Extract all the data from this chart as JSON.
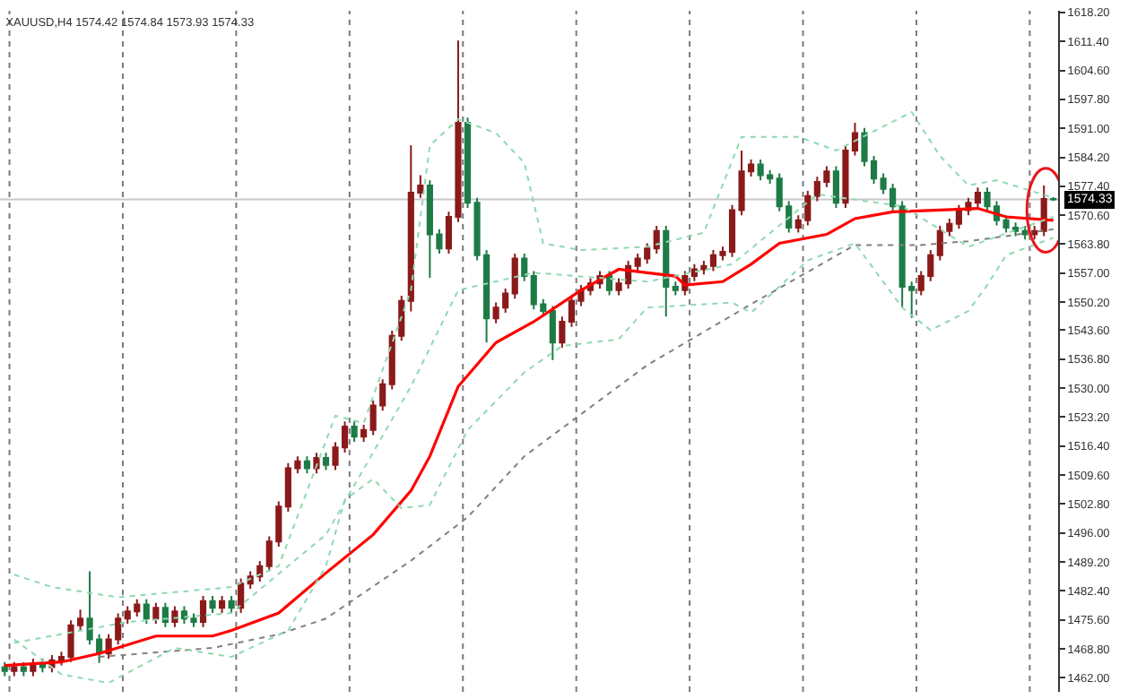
{
  "chart_data": {
    "type": "candlestick",
    "title": "XAUUSD,H4 1574.42 1574.84 1573.93 1574.33",
    "categories": [
      null,
      null,
      null,
      null,
      null,
      null,
      null,
      null,
      null,
      null,
      null,
      null,
      null,
      null,
      null,
      null,
      null,
      null,
      null,
      null,
      null,
      null,
      null,
      null,
      null,
      null,
      null,
      null,
      null,
      null,
      null,
      null,
      null,
      null,
      null,
      null,
      null,
      null,
      null,
      null,
      null,
      null,
      null,
      null,
      null,
      null,
      null,
      null,
      null,
      null,
      null,
      null,
      null,
      null,
      null,
      null,
      null,
      null,
      null,
      null,
      null,
      null,
      null,
      null,
      null,
      null,
      null,
      null,
      null,
      null,
      null,
      null,
      null,
      null,
      null,
      null,
      null,
      null,
      null,
      null,
      null,
      null,
      null,
      null,
      null,
      null,
      null,
      null,
      null,
      null,
      null,
      null,
      null,
      null,
      null,
      null,
      null,
      null,
      null,
      null,
      null,
      null,
      null,
      null,
      null,
      null,
      null,
      null,
      null,
      null,
      null,
      null
    ],
    "ylim": [
      1458.7,
      1618.6
    ],
    "yticks": [
      {
        "value": 1462.0,
        "label": "1462.00"
      },
      {
        "value": 1468.8,
        "label": "1468.80"
      },
      {
        "value": 1475.6,
        "label": "1475.60"
      },
      {
        "value": 1482.4,
        "label": "1482.40"
      },
      {
        "value": 1489.2,
        "label": "1489.20"
      },
      {
        "value": 1496.0,
        "label": "1496.00"
      },
      {
        "value": 1502.8,
        "label": "1502.80"
      },
      {
        "value": 1509.6,
        "label": "1509.60"
      },
      {
        "value": 1516.4,
        "label": "1516.40"
      },
      {
        "value": 1523.2,
        "label": "1523.20"
      },
      {
        "value": 1530.0,
        "label": "1530.00"
      },
      {
        "value": 1536.8,
        "label": "1536.80"
      },
      {
        "value": 1543.6,
        "label": "1543.60"
      },
      {
        "value": 1550.2,
        "label": "1550.20"
      },
      {
        "value": 1557.0,
        "label": "1557.00"
      },
      {
        "value": 1563.8,
        "label": "1563.80"
      },
      {
        "value": 1570.6,
        "label": "1570.60"
      },
      {
        "value": 1577.4,
        "label": "1577.40"
      },
      {
        "value": 1584.2,
        "label": "1584.20"
      },
      {
        "value": 1591.0,
        "label": "1591.00"
      },
      {
        "value": 1597.8,
        "label": "1597.80"
      },
      {
        "value": 1604.6,
        "label": "1604.60"
      },
      {
        "value": 1611.4,
        "label": "1611.40"
      },
      {
        "value": 1618.2,
        "label": "1618.20"
      }
    ],
    "tick_labels": "y",
    "grid": "x",
    "ref_lines": [
      {
        "axis": "y",
        "value": 1574.33,
        "label": "1574.33",
        "color": "#c8c8c8"
      }
    ],
    "colors": [
      "#1e7b46",
      "#8b1a1a",
      "#1e7b46",
      "#8b1a1a",
      "#1e7b46",
      "#8b1a1a",
      "#8b1a1a",
      "#8b1a1a",
      "#8b1a1a",
      "#1e7b46",
      "#1e7b46",
      "#8b1a1a",
      "#8b1a1a",
      "#8b1a1a",
      "#8b1a1a",
      "#1e7b46",
      "#8b1a1a",
      "#1e7b46",
      "#8b1a1a",
      "#1e7b46",
      "#1e7b46",
      "#8b1a1a",
      "#1e7b46",
      "#8b1a1a",
      "#1e7b46",
      "#8b1a1a",
      "#8b1a1a",
      "#8b1a1a",
      "#8b1a1a",
      "#8b1a1a",
      "#8b1a1a",
      "#8b1a1a",
      "#1e7b46",
      "#8b1a1a",
      "#1e7b46",
      "#8b1a1a",
      "#8b1a1a",
      "#1e7b46",
      "#8b1a1a",
      "#8b1a1a",
      "#8b1a1a",
      "#8b1a1a",
      "#8b1a1a",
      "#8b1a1a",
      "#8b1a1a",
      "#1e7b46",
      "#1e7b46",
      "#8b1a1a",
      "#8b1a1a",
      "#1e7b46",
      "#1e7b46",
      "#1e7b46",
      "#8b1a1a",
      "#8b1a1a",
      "#8b1a1a",
      "#1e7b46",
      "#1e7b46",
      "#1e7b46",
      "#1e7b46",
      "#8b1a1a",
      "#8b1a1a",
      "#8b1a1a",
      "#8b1a1a",
      "#8b1a1a",
      "#1e7b46",
      "#8b1a1a",
      "#8b1a1a",
      "#8b1a1a",
      "#8b1a1a",
      "#8b1a1a",
      "#1e7b46",
      "#1e7b46",
      "#8b1a1a",
      "#8b1a1a",
      "#8b1a1a",
      "#8b1a1a",
      "#8b1a1a",
      "#8b1a1a",
      "#8b1a1a",
      "#8b1a1a",
      "#1e7b46",
      "#1e7b46",
      "#1e7b46",
      "#1e7b46",
      "#8b1a1a",
      "#8b1a1a",
      "#8b1a1a",
      "#8b1a1a",
      "#1e7b46",
      "#8b1a1a",
      "#8b1a1a",
      "#1e7b46",
      "#1e7b46",
      "#1e7b46",
      "#1e7b46",
      "#1e7b46",
      "#1e7b46",
      "#8b1a1a",
      "#8b1a1a",
      "#8b1a1a",
      "#8b1a1a",
      "#8b1a1a",
      "#8b1a1a",
      "#8b1a1a",
      "#1e7b46",
      "#1e7b46",
      "#1e7b46",
      "#1e7b46",
      "#1e7b46",
      "#8b1a1a",
      "#8b1a1a",
      "#1e7b46"
    ],
    "ohlc": [
      [
        1464.5,
        1465.7,
        1462.4,
        1463.6
      ],
      [
        1463.6,
        1465.7,
        1462.4,
        1464.5
      ],
      [
        1464.5,
        1465.7,
        1462.4,
        1463.6
      ],
      [
        1463.6,
        1466.5,
        1462.4,
        1465.3
      ],
      [
        1465.3,
        1466.5,
        1463.3,
        1464.5
      ],
      [
        1464.5,
        1467.3,
        1463.3,
        1466.1
      ],
      [
        1466.1,
        1468.1,
        1464.9,
        1466.9
      ],
      [
        1466.9,
        1475.5,
        1465.7,
        1474.3
      ],
      [
        1474.3,
        1478.0,
        1473.1,
        1475.9
      ],
      [
        1475.9,
        1487.0,
        1469.8,
        1471.0
      ],
      [
        1471.0,
        1472.2,
        1465.5,
        1467.7
      ],
      [
        1467.7,
        1472.2,
        1466.5,
        1471.0
      ],
      [
        1471.0,
        1477.1,
        1469.8,
        1475.9
      ],
      [
        1475.9,
        1478.8,
        1474.7,
        1477.6
      ],
      [
        1477.6,
        1480.4,
        1476.4,
        1479.2
      ],
      [
        1479.2,
        1480.4,
        1474.7,
        1475.9
      ],
      [
        1475.9,
        1479.6,
        1474.7,
        1478.4
      ],
      [
        1478.4,
        1479.6,
        1473.9,
        1475.1
      ],
      [
        1475.1,
        1478.8,
        1473.9,
        1477.6
      ],
      [
        1477.6,
        1478.8,
        1474.7,
        1475.9
      ],
      [
        1475.9,
        1477.1,
        1473.9,
        1475.1
      ],
      [
        1475.1,
        1481.2,
        1473.9,
        1480.0
      ],
      [
        1480.0,
        1481.2,
        1477.2,
        1478.4
      ],
      [
        1478.4,
        1481.2,
        1477.2,
        1480.0
      ],
      [
        1480.0,
        1481.2,
        1477.2,
        1478.4
      ],
      [
        1478.4,
        1485.3,
        1477.2,
        1484.1
      ],
      [
        1484.1,
        1487.0,
        1482.9,
        1485.8
      ],
      [
        1485.8,
        1489.4,
        1484.6,
        1488.2
      ],
      [
        1488.2,
        1495.2,
        1487.0,
        1494.0
      ],
      [
        1494.0,
        1503.4,
        1492.8,
        1502.2
      ],
      [
        1502.2,
        1512.4,
        1501.0,
        1511.2
      ],
      [
        1511.2,
        1514.0,
        1510.0,
        1512.8
      ],
      [
        1512.8,
        1514.0,
        1510.0,
        1511.2
      ],
      [
        1511.2,
        1514.8,
        1510.0,
        1513.6
      ],
      [
        1513.6,
        1514.8,
        1510.8,
        1512.0
      ],
      [
        1512.0,
        1517.3,
        1510.8,
        1516.1
      ],
      [
        1516.1,
        1522.2,
        1514.9,
        1521.0
      ],
      [
        1521.0,
        1522.2,
        1517.4,
        1518.6
      ],
      [
        1518.6,
        1521.4,
        1517.4,
        1520.2
      ],
      [
        1520.2,
        1527.1,
        1519.0,
        1525.9
      ],
      [
        1525.9,
        1532.1,
        1524.7,
        1530.9
      ],
      [
        1530.9,
        1543.5,
        1529.7,
        1542.3
      ],
      [
        1542.3,
        1551.7,
        1541.1,
        1550.5
      ],
      [
        1550.5,
        1587.0,
        1548.0,
        1575.9
      ],
      [
        1575.9,
        1580.0,
        1574.7,
        1577.6
      ],
      [
        1577.6,
        1578.8,
        1555.9,
        1566.1
      ],
      [
        1566.1,
        1567.3,
        1561.6,
        1562.8
      ],
      [
        1562.8,
        1571.4,
        1561.6,
        1570.2
      ],
      [
        1570.2,
        1611.6,
        1569.0,
        1592.3
      ],
      [
        1592.3,
        1593.5,
        1572.3,
        1573.5
      ],
      [
        1573.5,
        1574.7,
        1560.0,
        1561.2
      ],
      [
        1561.2,
        1562.4,
        1540.7,
        1546.4
      ],
      [
        1546.4,
        1550.1,
        1545.2,
        1548.9
      ],
      [
        1548.9,
        1553.4,
        1547.7,
        1552.2
      ],
      [
        1552.2,
        1561.6,
        1551.0,
        1560.4
      ],
      [
        1560.4,
        1561.6,
        1555.1,
        1556.3
      ],
      [
        1556.3,
        1557.5,
        1548.5,
        1549.7
      ],
      [
        1549.7,
        1550.9,
        1546.9,
        1548.1
      ],
      [
        1548.1,
        1549.3,
        1536.6,
        1540.7
      ],
      [
        1540.7,
        1546.8,
        1539.5,
        1545.6
      ],
      [
        1545.6,
        1551.7,
        1544.4,
        1550.5
      ],
      [
        1550.5,
        1554.2,
        1549.3,
        1553.0
      ],
      [
        1553.0,
        1555.8,
        1551.8,
        1554.6
      ],
      [
        1554.6,
        1557.5,
        1553.4,
        1556.3
      ],
      [
        1556.3,
        1557.5,
        1551.8,
        1553.0
      ],
      [
        1553.0,
        1555.8,
        1551.8,
        1554.6
      ],
      [
        1554.6,
        1559.9,
        1553.4,
        1558.7
      ],
      [
        1558.7,
        1561.6,
        1557.5,
        1560.4
      ],
      [
        1560.4,
        1564.0,
        1559.2,
        1562.8
      ],
      [
        1562.8,
        1568.1,
        1561.6,
        1566.9
      ],
      [
        1566.9,
        1568.1,
        1546.8,
        1553.8
      ],
      [
        1553.8,
        1555.0,
        1551.8,
        1553.0
      ],
      [
        1553.0,
        1557.5,
        1551.8,
        1556.3
      ],
      [
        1556.3,
        1559.1,
        1555.1,
        1557.9
      ],
      [
        1557.9,
        1559.9,
        1556.7,
        1558.7
      ],
      [
        1558.7,
        1562.4,
        1557.5,
        1561.2
      ],
      [
        1561.2,
        1563.2,
        1560.0,
        1562.0
      ],
      [
        1562.0,
        1573.0,
        1560.8,
        1571.8
      ],
      [
        1571.8,
        1585.8,
        1570.6,
        1580.9
      ],
      [
        1580.9,
        1583.7,
        1579.7,
        1582.5
      ],
      [
        1582.5,
        1583.7,
        1578.8,
        1580.0
      ],
      [
        1580.0,
        1581.2,
        1578.0,
        1579.2
      ],
      [
        1579.2,
        1580.4,
        1571.5,
        1572.7
      ],
      [
        1572.7,
        1573.9,
        1566.5,
        1567.7
      ],
      [
        1567.7,
        1570.6,
        1566.5,
        1569.4
      ],
      [
        1569.4,
        1576.3,
        1568.2,
        1575.1
      ],
      [
        1575.1,
        1579.6,
        1573.9,
        1578.4
      ],
      [
        1578.4,
        1582.1,
        1577.2,
        1580.9
      ],
      [
        1580.9,
        1582.1,
        1572.3,
        1573.5
      ],
      [
        1573.5,
        1587.0,
        1572.3,
        1585.8
      ],
      [
        1585.8,
        1592.3,
        1584.6,
        1589.9
      ],
      [
        1589.9,
        1591.1,
        1582.1,
        1583.3
      ],
      [
        1583.3,
        1584.5,
        1578.0,
        1579.2
      ],
      [
        1579.2,
        1580.4,
        1575.6,
        1576.8
      ],
      [
        1576.8,
        1578.0,
        1571.5,
        1572.7
      ],
      [
        1572.7,
        1573.9,
        1548.9,
        1553.8
      ],
      [
        1553.8,
        1555.0,
        1546.5,
        1553.0
      ],
      [
        1553.0,
        1557.5,
        1551.8,
        1556.3
      ],
      [
        1556.3,
        1562.4,
        1555.1,
        1561.2
      ],
      [
        1561.2,
        1568.1,
        1560.0,
        1566.9
      ],
      [
        1566.9,
        1569.8,
        1565.7,
        1568.6
      ],
      [
        1568.6,
        1573.0,
        1567.4,
        1571.8
      ],
      [
        1571.8,
        1574.7,
        1570.6,
        1573.5
      ],
      [
        1573.5,
        1577.1,
        1572.3,
        1575.9
      ],
      [
        1575.9,
        1577.1,
        1571.5,
        1572.7
      ],
      [
        1572.7,
        1573.9,
        1568.2,
        1569.4
      ],
      [
        1569.4,
        1570.6,
        1566.5,
        1567.7
      ],
      [
        1567.7,
        1568.9,
        1565.7,
        1566.9
      ],
      [
        1566.9,
        1568.1,
        1564.9,
        1566.1
      ],
      [
        1566.1,
        1568.1,
        1564.9,
        1566.9
      ],
      [
        1566.9,
        1577.6,
        1565.7,
        1574.42
      ],
      [
        1574.42,
        1574.84,
        1573.93,
        1574.33
      ]
    ],
    "series": [
      {
        "type": "line",
        "color": "#ff0000",
        "line_style": "solid",
        "values": [
          1464.9,
          null,
          null,
          null,
          null,
          null,
          1465.7,
          null,
          null,
          null,
          1467.7,
          null,
          null,
          null,
          null,
          null,
          1471.8,
          null,
          null,
          null,
          null,
          null,
          1471.8,
          null,
          1473.1,
          null,
          null,
          null,
          null,
          1477.2,
          null,
          null,
          null,
          null,
          1486.6,
          null,
          null,
          null,
          null,
          1495.6,
          null,
          null,
          null,
          1505.9,
          null,
          1514.0,
          null,
          null,
          1530.4,
          null,
          null,
          null,
          1540.7,
          null,
          null,
          null,
          1545.6,
          null,
          null,
          null,
          null,
          1553.0,
          null,
          null,
          null,
          1557.9,
          null,
          null,
          1557.1,
          null,
          null,
          1556.3,
          1554.2,
          null,
          null,
          null,
          1555.0,
          null,
          null,
          1559.1,
          null,
          null,
          1564.0,
          null,
          null,
          null,
          null,
          1566.1,
          null,
          null,
          1569.8,
          null,
          null,
          null,
          1571.4,
          null,
          null,
          null,
          null,
          1571.8,
          null,
          null,
          null,
          1572.2,
          null,
          null,
          1570.2,
          null,
          null,
          null,
          null,
          1569.4
        ]
      },
      {
        "type": "line",
        "color": "#808080",
        "line_style": "dotted",
        "values": [
          null,
          null,
          null,
          null,
          null,
          null,
          null,
          null,
          null,
          null,
          1466.9,
          null,
          null,
          null,
          null,
          null,
          null,
          null,
          null,
          null,
          null,
          null,
          1469.0,
          null,
          null,
          null,
          null,
          null,
          null,
          1472.2,
          null,
          null,
          null,
          null,
          1475.9,
          null,
          null,
          null,
          null,
          null,
          null,
          null,
          null,
          1489.5,
          null,
          null,
          null,
          null,
          null,
          1499.7,
          null,
          null,
          null,
          null,
          null,
          1514.0,
          null,
          null,
          null,
          null,
          null,
          null,
          null,
          null,
          null,
          null,
          null,
          null,
          1535.4,
          null,
          null,
          null,
          null,
          null,
          null,
          null,
          null,
          null,
          null,
          1549.7,
          null,
          null,
          null,
          null,
          null,
          null,
          null,
          null,
          null,
          null,
          1563.6,
          null,
          null,
          null,
          null,
          null,
          null,
          1563.6,
          null,
          null,
          null,
          null,
          1564.5,
          null,
          null,
          null,
          1565.7,
          null,
          null,
          null,
          null,
          1567.3
        ]
      },
      {
        "type": "line",
        "color": "#8fd9b0",
        "line_style": "dotted",
        "values": [
          null,
          1486.2,
          null,
          null,
          null,
          1483.3,
          null,
          null,
          null,
          null,
          null,
          null,
          1480.9,
          null,
          null,
          null,
          null,
          null,
          1482.1,
          null,
          null,
          null,
          null,
          null,
          1483.3,
          null,
          null,
          null,
          null,
          1488.2,
          null,
          null,
          null,
          null,
          null,
          1523.5,
          null,
          null,
          1521.8,
          null,
          null,
          null,
          null,
          1553.0,
          null,
          1587.0,
          null,
          null,
          1593.1,
          null,
          null,
          null,
          1589.9,
          null,
          null,
          1582.9,
          null,
          1564.0,
          null,
          null,
          null,
          1562.4,
          null,
          null,
          null,
          null,
          null,
          null,
          1563.2,
          null,
          null,
          null,
          null,
          null,
          1566.5,
          null,
          null,
          null,
          1589.0,
          null,
          null,
          null,
          null,
          null,
          1589.0,
          null,
          null,
          null,
          1585.8,
          null,
          null,
          null,
          null,
          null,
          null,
          null,
          1594.8,
          null,
          null,
          1584.5,
          null,
          null,
          1577.6,
          null,
          null,
          1578.8,
          null,
          null,
          null,
          null,
          null,
          1574.7
        ]
      },
      {
        "type": "line",
        "color": "#8fd9b0",
        "line_style": "dotted",
        "values": [
          null,
          1470.2,
          null,
          null,
          null,
          null,
          null,
          null,
          null,
          null,
          null,
          null,
          null,
          1475.1,
          null,
          null,
          null,
          null,
          null,
          null,
          null,
          null,
          null,
          null,
          1477.2,
          null,
          null,
          null,
          null,
          null,
          null,
          null,
          null,
          null,
          1495.6,
          null,
          null,
          null,
          null,
          null,
          null,
          null,
          null,
          1530.4,
          null,
          null,
          null,
          null,
          1553.0,
          null,
          null,
          null,
          null,
          null,
          null,
          null,
          1557.1,
          null,
          null,
          null,
          null,
          null,
          null,
          null,
          null,
          null,
          null,
          null,
          1555.0,
          null,
          null,
          null,
          null,
          null,
          null,
          null,
          null,
          1559.1,
          null,
          null,
          null,
          null,
          null,
          null,
          null,
          null,
          1575.5,
          null,
          null,
          null,
          null,
          null,
          null,
          null,
          null,
          1572.7,
          null,
          null,
          null,
          null,
          null,
          null,
          1563.2,
          null,
          null,
          null,
          null,
          null,
          null,
          null,
          null,
          1570.2
        ]
      },
      {
        "type": "line",
        "color": "#8fd9b0",
        "line_style": "dotted",
        "values": [
          null,
          1471.0,
          null,
          null,
          null,
          null,
          1462.8,
          null,
          null,
          null,
          null,
          1460.8,
          null,
          null,
          null,
          null,
          null,
          null,
          1469.0,
          null,
          null,
          null,
          null,
          null,
          1466.9,
          null,
          null,
          null,
          null,
          null,
          1473.1,
          null,
          null,
          null,
          1488.2,
          null,
          1503.8,
          null,
          null,
          1508.7,
          null,
          null,
          1501.8,
          null,
          null,
          1502.6,
          null,
          null,
          null,
          1520.2,
          null,
          null,
          null,
          null,
          null,
          1533.7,
          null,
          null,
          null,
          1539.9,
          null,
          null,
          null,
          null,
          null,
          1541.5,
          null,
          null,
          1548.9,
          null,
          null,
          null,
          null,
          null,
          null,
          null,
          null,
          1550.1,
          null,
          1547.7,
          null,
          null,
          null,
          null,
          null,
          1560.0,
          null,
          null,
          null,
          null,
          1564.0,
          null,
          null,
          null,
          null,
          1548.9,
          null,
          null,
          1543.6,
          null,
          null,
          null,
          1548.1,
          null,
          1554.2,
          null,
          1561.2,
          null,
          null,
          null,
          null,
          1565.3
        ]
      }
    ]
  }
}
